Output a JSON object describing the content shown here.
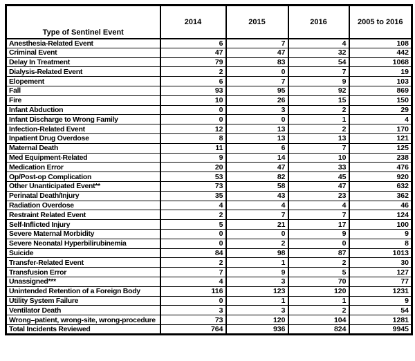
{
  "chart_data": {
    "type": "table",
    "columns": [
      "Type of Sentinel Event",
      "2014",
      "2015",
      "2016",
      "2005 to 2016"
    ],
    "rows": [
      {
        "label": "Anesthesia-Related Event",
        "values": [
          6,
          7,
          4,
          108
        ]
      },
      {
        "label": "Criminal Event",
        "values": [
          47,
          47,
          32,
          442
        ]
      },
      {
        "label": "Delay In Treatment",
        "values": [
          79,
          83,
          54,
          1068
        ]
      },
      {
        "label": "Dialysis-Related Event",
        "values": [
          2,
          0,
          7,
          19
        ]
      },
      {
        "label": "Elopement",
        "values": [
          6,
          7,
          9,
          103
        ]
      },
      {
        "label": "Fall",
        "values": [
          93,
          95,
          92,
          869
        ]
      },
      {
        "label": "Fire",
        "values": [
          10,
          26,
          15,
          150
        ]
      },
      {
        "label": "Infant Abduction",
        "values": [
          0,
          3,
          2,
          29
        ]
      },
      {
        "label": "Infant Discharge to Wrong Family",
        "values": [
          0,
          0,
          1,
          4
        ]
      },
      {
        "label": "Infection-Related Event",
        "values": [
          12,
          13,
          2,
          170
        ]
      },
      {
        "label": "Inpatient Drug Overdose",
        "values": [
          8,
          13,
          13,
          121
        ]
      },
      {
        "label": "Maternal Death",
        "values": [
          11,
          6,
          7,
          125
        ]
      },
      {
        "label": "Med Equipment-Related",
        "values": [
          9,
          14,
          10,
          238
        ]
      },
      {
        "label": "Medication Error",
        "values": [
          20,
          47,
          33,
          476
        ]
      },
      {
        "label": "Op/Post-op Complication",
        "values": [
          53,
          82,
          45,
          920
        ]
      },
      {
        "label": "Other Unanticipated Event**",
        "values": [
          73,
          58,
          47,
          632
        ]
      },
      {
        "label": "Perinatal Death/Injury",
        "values": [
          35,
          43,
          23,
          362
        ]
      },
      {
        "label": "Radiation Overdose",
        "values": [
          4,
          4,
          4,
          46
        ]
      },
      {
        "label": "Restraint Related Event",
        "values": [
          2,
          7,
          7,
          124
        ]
      },
      {
        "label": "Self-Inflicted Injury",
        "values": [
          5,
          21,
          17,
          100
        ]
      },
      {
        "label": "Severe Maternal Morbidity",
        "values": [
          0,
          0,
          9,
          9
        ]
      },
      {
        "label": "Severe Neonatal Hyperbilirubinemia",
        "values": [
          0,
          2,
          0,
          8
        ]
      },
      {
        "label": "Suicide",
        "values": [
          84,
          98,
          87,
          1013
        ]
      },
      {
        "label": "Transfer-Related Event",
        "values": [
          2,
          1,
          2,
          30
        ]
      },
      {
        "label": "Transfusion Error",
        "values": [
          7,
          9,
          5,
          127
        ]
      },
      {
        "label": "Unassigned***",
        "values": [
          4,
          3,
          70,
          77
        ]
      },
      {
        "label": "Unintended Retention of a Foreign Body",
        "values": [
          116,
          123,
          120,
          1231
        ]
      },
      {
        "label": "Utility System Failure",
        "values": [
          0,
          1,
          1,
          9
        ]
      },
      {
        "label": "Ventilator Death",
        "values": [
          3,
          3,
          2,
          54
        ]
      },
      {
        "label": "Wrong–patient, wrong-site, wrong-procedure",
        "values": [
          73,
          120,
          104,
          1281
        ]
      }
    ],
    "total_row": {
      "label": "Total Incidents Reviewed",
      "values": [
        764,
        936,
        824,
        9945
      ]
    },
    "layout": {
      "grid": "full-borders",
      "header_align": "center",
      "value_align": "right"
    }
  },
  "colors": {
    "border": "#000000",
    "text": "#000000",
    "background": "#ffffff"
  }
}
